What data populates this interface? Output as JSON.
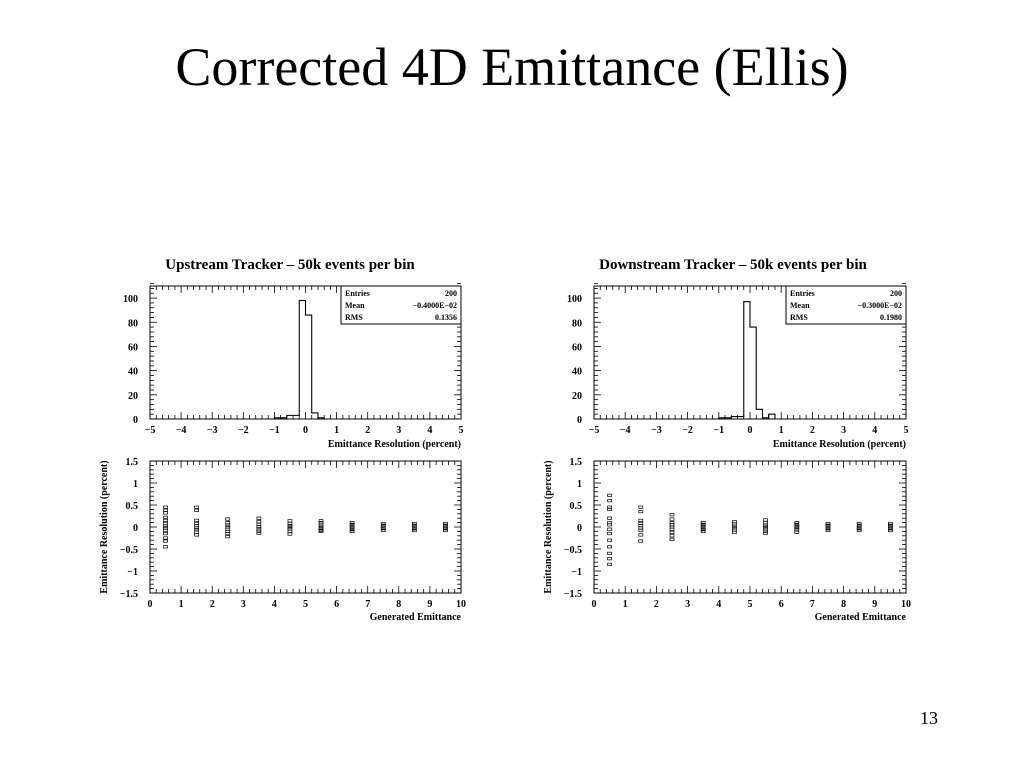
{
  "slide": {
    "title": "Corrected 4D Emittance (Ellis)",
    "page_number": "13"
  },
  "chart_data": [
    {
      "type": "histogram",
      "panel": "upstream-histogram",
      "title": "Upstream Tracker – 50k events per bin",
      "xlabel": "Emittance Resolution (percent)",
      "ylabel": "",
      "xlim": [
        -5,
        5
      ],
      "ylim": [
        0,
        110
      ],
      "xticks": [
        -5,
        -4,
        -3,
        -2,
        -1,
        0,
        1,
        2,
        3,
        4,
        5
      ],
      "yticks": [
        0,
        20,
        40,
        60,
        80,
        100
      ],
      "bin_edges": [
        -1.0,
        -0.6,
        -0.2,
        0.0,
        0.2,
        0.4,
        0.6
      ],
      "counts": [
        1,
        3,
        98,
        86,
        5,
        1
      ],
      "stats": [
        {
          "label": "Entries",
          "value": "200"
        },
        {
          "label": "Mean",
          "value": "−0.4000E−02"
        },
        {
          "label": "RMS",
          "value": "0.1356"
        }
      ]
    },
    {
      "type": "histogram",
      "panel": "downstream-histogram",
      "title": "Downstream Tracker – 50k events per bin",
      "xlabel": "Emittance Resolution (percent)",
      "ylabel": "",
      "xlim": [
        -5,
        5
      ],
      "ylim": [
        0,
        110
      ],
      "xticks": [
        -5,
        -4,
        -3,
        -2,
        -1,
        0,
        1,
        2,
        3,
        4,
        5
      ],
      "yticks": [
        0,
        20,
        40,
        60,
        80,
        100
      ],
      "bin_edges": [
        -1.0,
        -0.6,
        -0.2,
        0.0,
        0.2,
        0.4,
        0.6,
        0.8
      ],
      "counts": [
        1,
        2,
        97,
        76,
        8,
        1,
        4
      ],
      "stats": [
        {
          "label": "Entries",
          "value": "200"
        },
        {
          "label": "Mean",
          "value": "−0.3000E−02"
        },
        {
          "label": "RMS",
          "value": "0.1980"
        }
      ]
    },
    {
      "type": "scatter",
      "panel": "upstream-scatter",
      "title": "",
      "xlabel": "Generated Emittance",
      "ylabel": "Emittance Resolution (percent)",
      "xlim": [
        0,
        10
      ],
      "ylim": [
        -1.5,
        1.5
      ],
      "xticks": [
        0,
        1,
        2,
        3,
        4,
        5,
        6,
        7,
        8,
        9,
        10
      ],
      "yticks": [
        -1.5,
        -1,
        -0.5,
        0,
        0.5,
        1,
        1.5
      ],
      "point_columns": [
        {
          "x": 0.5,
          "y": [
            0.45,
            0.38,
            0.32,
            0.22,
            0.15,
            0.08,
            0.02,
            -0.02,
            -0.08,
            -0.15,
            -0.25,
            -0.32,
            -0.45
          ]
        },
        {
          "x": 1.5,
          "y": [
            0.45,
            0.38,
            0.15,
            0.08,
            0.03,
            -0.02,
            -0.06,
            -0.12,
            -0.18
          ]
        },
        {
          "x": 2.5,
          "y": [
            0.18,
            0.1,
            0.04,
            0.0,
            -0.05,
            -0.1,
            -0.15,
            -0.22
          ]
        },
        {
          "x": 3.5,
          "y": [
            0.2,
            0.12,
            0.06,
            0.0,
            -0.04,
            -0.1,
            -0.14
          ]
        },
        {
          "x": 4.5,
          "y": [
            0.14,
            0.08,
            0.03,
            0.0,
            -0.04,
            -0.1,
            -0.16
          ]
        },
        {
          "x": 5.5,
          "y": [
            0.14,
            0.1,
            0.04,
            0.0,
            -0.04,
            -0.08,
            -0.1
          ]
        },
        {
          "x": 6.5,
          "y": [
            0.1,
            0.06,
            0.02,
            -0.02,
            -0.06,
            -0.1
          ]
        },
        {
          "x": 7.5,
          "y": [
            0.08,
            0.04,
            0.0,
            -0.04,
            -0.08
          ]
        },
        {
          "x": 8.5,
          "y": [
            0.08,
            0.04,
            0.0,
            -0.04,
            -0.08
          ]
        },
        {
          "x": 9.5,
          "y": [
            0.08,
            0.04,
            0.0,
            -0.04,
            -0.08
          ]
        }
      ]
    },
    {
      "type": "scatter",
      "panel": "downstream-scatter",
      "title": "",
      "xlabel": "Generated Emittance",
      "ylabel": "Emittance Resolution (percent)",
      "xlim": [
        0,
        10
      ],
      "ylim": [
        -1.5,
        1.5
      ],
      "xticks": [
        0,
        1,
        2,
        3,
        4,
        5,
        6,
        7,
        8,
        9,
        10
      ],
      "yticks": [
        -1.5,
        -1,
        -0.5,
        0,
        0.5,
        1,
        1.5
      ],
      "point_columns": [
        {
          "x": 0.5,
          "y": [
            0.72,
            0.6,
            0.45,
            0.4,
            0.2,
            0.1,
            0.05,
            -0.05,
            -0.15,
            -0.3,
            -0.45,
            -0.6,
            -0.72,
            -0.85
          ]
        },
        {
          "x": 1.5,
          "y": [
            0.45,
            0.35,
            0.15,
            0.08,
            0.03,
            -0.02,
            -0.08,
            -0.18,
            -0.32
          ]
        },
        {
          "x": 2.5,
          "y": [
            0.28,
            0.18,
            0.1,
            0.05,
            0.0,
            -0.05,
            -0.12,
            -0.2,
            -0.28
          ]
        },
        {
          "x": 3.5,
          "y": [
            0.1,
            0.06,
            0.02,
            -0.02,
            -0.06,
            -0.1
          ]
        },
        {
          "x": 4.5,
          "y": [
            0.12,
            0.07,
            0.02,
            -0.02,
            -0.07,
            -0.12
          ]
        },
        {
          "x": 5.5,
          "y": [
            0.16,
            0.1,
            0.04,
            0.0,
            -0.04,
            -0.1,
            -0.14
          ]
        },
        {
          "x": 6.5,
          "y": [
            0.1,
            0.06,
            0.02,
            -0.02,
            -0.06,
            -0.12
          ]
        },
        {
          "x": 7.5,
          "y": [
            0.08,
            0.04,
            0.0,
            -0.04,
            -0.08
          ]
        },
        {
          "x": 8.5,
          "y": [
            0.08,
            0.04,
            0.0,
            -0.04,
            -0.08
          ]
        },
        {
          "x": 9.5,
          "y": [
            0.08,
            0.04,
            0.0,
            -0.04,
            -0.08
          ]
        }
      ]
    }
  ]
}
